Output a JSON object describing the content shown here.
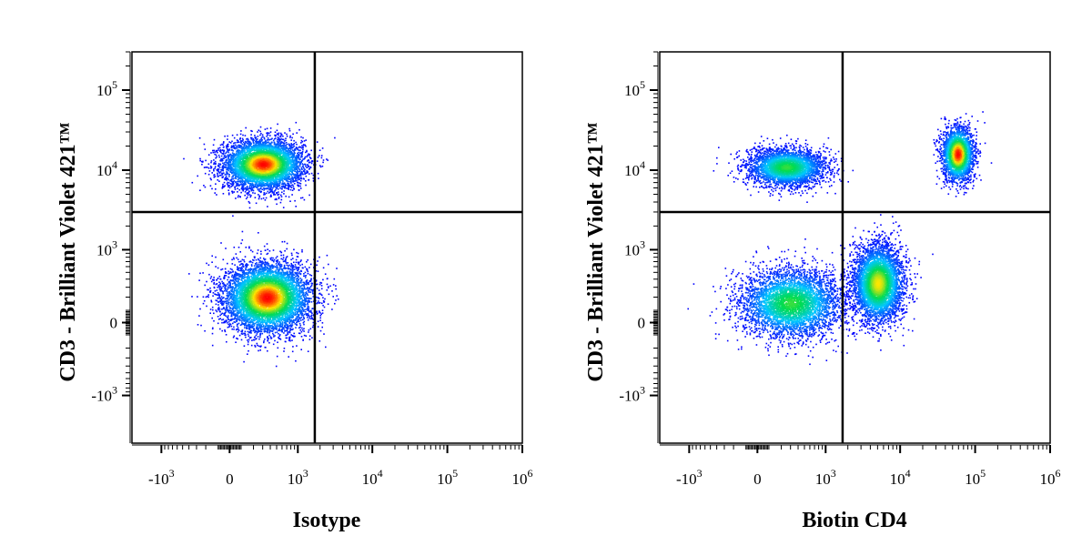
{
  "chart_data": [
    {
      "type": "scatter",
      "title": "",
      "xlabel": "Isotype",
      "ylabel": "CD3 - Brilliant Violet 421™",
      "x_scale": "biexponential",
      "y_scale": "biexponential",
      "xlim": [
        -2500,
        1000000
      ],
      "ylim": [
        -4000,
        300000
      ],
      "x_ticks": [
        {
          "base": "-10",
          "exp": "3",
          "value": -1000
        },
        {
          "base": "0",
          "exp": "",
          "value": 0
        },
        {
          "base": "10",
          "exp": "3",
          "value": 1000
        },
        {
          "base": "10",
          "exp": "4",
          "value": 10000
        },
        {
          "base": "10",
          "exp": "5",
          "value": 100000
        },
        {
          "base": "10",
          "exp": "6",
          "value": 1000000
        }
      ],
      "y_ticks": [
        {
          "base": "10",
          "exp": "5",
          "value": 100000
        },
        {
          "base": "10",
          "exp": "4",
          "value": 10000
        },
        {
          "base": "10",
          "exp": "3",
          "value": 1000
        },
        {
          "base": "0",
          "exp": "",
          "value": 0
        },
        {
          "base": "-10",
          "exp": "3",
          "value": -1000
        }
      ],
      "quadrant_gate": {
        "x": 1700,
        "y": 3000
      },
      "grid": false,
      "color_map": "density: blue-cyan-green-yellow-red",
      "populations": [
        {
          "x_center": 300,
          "y_center": 12000,
          "x_spread": 0.55,
          "y_spread": 0.32,
          "events": 5500,
          "peak": "red"
        },
        {
          "x_center": 350,
          "y_center": 200,
          "x_spread": 0.6,
          "y_spread": 0.45,
          "events": 6500,
          "peak": "red"
        }
      ]
    },
    {
      "type": "scatter",
      "title": "",
      "xlabel": "Biotin CD4",
      "ylabel": "CD3 - Brilliant Violet 421™",
      "x_scale": "biexponential",
      "y_scale": "biexponential",
      "xlim": [
        -2500,
        1000000
      ],
      "ylim": [
        -4000,
        300000
      ],
      "x_ticks": [
        {
          "base": "-10",
          "exp": "3",
          "value": -1000
        },
        {
          "base": "0",
          "exp": "",
          "value": 0
        },
        {
          "base": "10",
          "exp": "3",
          "value": 1000
        },
        {
          "base": "10",
          "exp": "4",
          "value": 10000
        },
        {
          "base": "10",
          "exp": "5",
          "value": 100000
        },
        {
          "base": "10",
          "exp": "6",
          "value": 1000000
        }
      ],
      "y_ticks": [
        {
          "base": "10",
          "exp": "5",
          "value": 100000
        },
        {
          "base": "10",
          "exp": "4",
          "value": 10000
        },
        {
          "base": "10",
          "exp": "3",
          "value": 1000
        },
        {
          "base": "0",
          "exp": "",
          "value": 0
        },
        {
          "base": "-10",
          "exp": "3",
          "value": -1000
        }
      ],
      "quadrant_gate": {
        "x": 1700,
        "y": 3000
      },
      "grid": false,
      "color_map": "density: blue-cyan-green-yellow-red",
      "populations": [
        {
          "x_center": 250,
          "y_center": 11000,
          "x_spread": 0.55,
          "y_spread": 0.25,
          "events": 3200,
          "peak": "green"
        },
        {
          "x_center": 58000,
          "y_center": 16000,
          "x_spread": 0.22,
          "y_spread": 0.35,
          "events": 2600,
          "peak": "red"
        },
        {
          "x_center": 300,
          "y_center": 150,
          "x_spread": 0.7,
          "y_spread": 0.45,
          "events": 4200,
          "peak": "green"
        },
        {
          "x_center": 5000,
          "y_center": 350,
          "x_spread": 0.35,
          "y_spread": 0.5,
          "events": 4600,
          "peak": "yellow"
        }
      ]
    }
  ]
}
